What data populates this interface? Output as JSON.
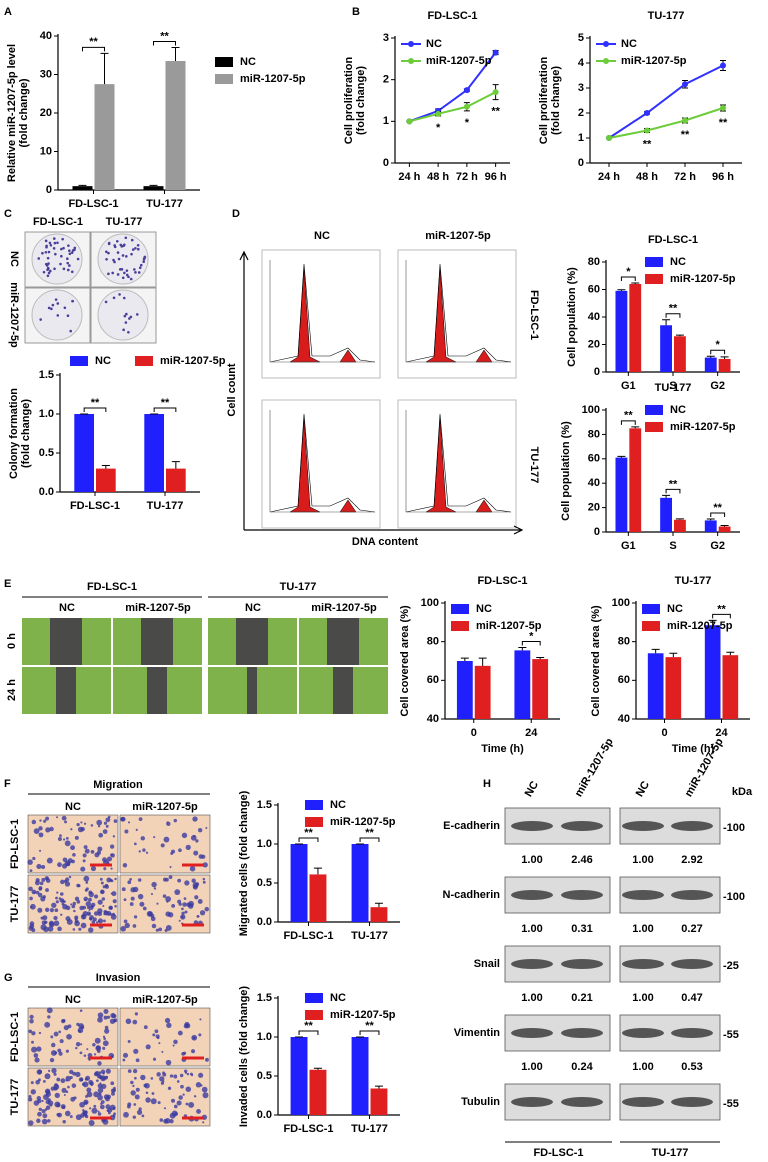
{
  "chart_data": [
    {
      "type": "bar",
      "categories": [
        "FD-LSC-1",
        "TU-177"
      ],
      "series": [
        {
          "name": "NC",
          "color": "#000000",
          "values": [
            1,
            1
          ],
          "errors": [
            0.2,
            0.2
          ]
        },
        {
          "name": "miR-1207-5p",
          "color": "#9a9a9a",
          "values": [
            27.5,
            33.5
          ],
          "errors": [
            8,
            3.5
          ]
        }
      ],
      "ylim": [
        0,
        40
      ],
      "yticks": [
        0,
        10,
        20,
        30,
        40
      ],
      "ylabel": [
        "Relative miR-1207-5p level",
        "(fold change)"
      ],
      "significance": [
        "**",
        "**"
      ],
      "legend": "outside right"
    },
    {
      "type": "line",
      "title": "FD-LSC-1",
      "categories": [
        "24 h",
        "48 h",
        "72 h",
        "96 h"
      ],
      "series": [
        {
          "name": "NC",
          "color": "#3030ff",
          "values": [
            1,
            1.25,
            1.75,
            2.65
          ],
          "errors": [
            0,
            0.05,
            0.03,
            0.05
          ]
        },
        {
          "name": "miR-1207-5p",
          "color": "#6ccc3a",
          "values": [
            1,
            1.18,
            1.35,
            1.7
          ],
          "errors": [
            0,
            0.05,
            0.1,
            0.18
          ]
        }
      ],
      "ylim": [
        0,
        3
      ],
      "yticks": [
        0,
        1,
        2,
        3
      ],
      "ylabel": [
        "Cell proliferation",
        "(fold change)"
      ],
      "significance": [
        null,
        "*",
        "*",
        "**"
      ],
      "legend": "upper left"
    },
    {
      "type": "line",
      "title": "TU-177",
      "categories": [
        "24 h",
        "48 h",
        "72 h",
        "96 h"
      ],
      "series": [
        {
          "name": "NC",
          "color": "#3030ff",
          "values": [
            1,
            2,
            3.15,
            3.9
          ],
          "errors": [
            0,
            0.05,
            0.15,
            0.2
          ]
        },
        {
          "name": "miR-1207-5p",
          "color": "#6ccc3a",
          "values": [
            1,
            1.3,
            1.7,
            2.2
          ],
          "errors": [
            0,
            0.08,
            0.1,
            0.12
          ]
        }
      ],
      "ylim": [
        0,
        5
      ],
      "yticks": [
        0,
        1,
        2,
        3,
        4,
        5
      ],
      "ylabel": [
        "Cell proliferation",
        "(fold change)"
      ],
      "significance": [
        null,
        "**",
        "**",
        "**"
      ],
      "legend": "upper left"
    },
    {
      "type": "bar",
      "categories": [
        "FD-LSC-1",
        "TU-177"
      ],
      "series": [
        {
          "name": "NC",
          "color": "#2020ff",
          "values": [
            1,
            1
          ],
          "errors": [
            0,
            0
          ]
        },
        {
          "name": "miR-1207-5p",
          "color": "#e02020",
          "values": [
            0.3,
            0.3
          ],
          "errors": [
            0.04,
            0.09
          ]
        }
      ],
      "ylim": [
        0,
        1.5
      ],
      "yticks": [
        {
          "value": 0,
          "label": "0.0"
        },
        {
          "value": 0.5,
          "label": "0.5"
        },
        {
          "value": 1,
          "label": "1.0"
        },
        {
          "value": 1.5,
          "label": "1.5"
        }
      ],
      "ylabel": [
        "Colony formation",
        "(fold change)"
      ],
      "significance": [
        "**",
        "**"
      ],
      "legend": "top"
    },
    {
      "type": "bar",
      "title": "FD-LSC-1",
      "categories": [
        "G1",
        "S",
        "G2"
      ],
      "series": [
        {
          "name": "NC",
          "color": "#2020ff",
          "values": [
            59,
            34,
            10.5
          ],
          "errors": [
            0.8,
            4,
            1
          ]
        },
        {
          "name": "miR-1207-5p",
          "color": "#e02020",
          "values": [
            64,
            26,
            9.5
          ],
          "errors": [
            0.7,
            0.8,
            1.5
          ]
        }
      ],
      "ylim": [
        0,
        80
      ],
      "yticks": [
        0,
        20,
        40,
        60,
        80
      ],
      "ylabel": [
        "Cell population (%)"
      ],
      "significance": [
        "*",
        "**",
        "*"
      ],
      "legend": "upper right"
    },
    {
      "type": "bar",
      "title": "TU-177",
      "categories": [
        "G1",
        "S",
        "G2"
      ],
      "series": [
        {
          "name": "NC",
          "color": "#2020ff",
          "values": [
            61,
            28,
            9.5
          ],
          "errors": [
            1,
            2,
            1.2
          ]
        },
        {
          "name": "miR-1207-5p",
          "color": "#e02020",
          "values": [
            85,
            10,
            4.5
          ],
          "errors": [
            1.2,
            0.8,
            0.8
          ]
        }
      ],
      "ylim": [
        0,
        100
      ],
      "yticks": [
        0,
        20,
        40,
        60,
        80,
        100
      ],
      "ylabel": [
        "Cell population (%)"
      ],
      "significance": [
        "**",
        "**",
        "**"
      ],
      "legend": "upper right"
    },
    {
      "type": "bar",
      "title": "FD-LSC-1",
      "categories": [
        "0",
        "24"
      ],
      "series": [
        {
          "name": "NC",
          "color": "#2020ff",
          "values": [
            70,
            75.5
          ],
          "errors": [
            1.5,
            1.5
          ]
        },
        {
          "name": "miR-1207-5p",
          "color": "#e02020",
          "values": [
            67.5,
            71
          ],
          "errors": [
            4,
            0.8
          ]
        }
      ],
      "ylim": [
        40,
        100
      ],
      "yticks": [
        40,
        60,
        80,
        100
      ],
      "ylabel": [
        "Cell covered area (%)"
      ],
      "xlabel": "Time (h)",
      "significance": [
        null,
        "*"
      ],
      "legend": "upper left"
    },
    {
      "type": "bar",
      "title": "TU-177",
      "categories": [
        "0",
        "24"
      ],
      "series": [
        {
          "name": "NC",
          "color": "#2020ff",
          "values": [
            74,
            88.5
          ],
          "errors": [
            2,
            2.5
          ]
        },
        {
          "name": "miR-1207-5p",
          "color": "#e02020",
          "values": [
            72,
            73
          ],
          "errors": [
            2,
            1.5
          ]
        }
      ],
      "ylim": [
        40,
        100
      ],
      "yticks": [
        40,
        60,
        80,
        100
      ],
      "ylabel": [
        "Cell covered area (%)"
      ],
      "xlabel": "Time (h)",
      "significance": [
        null,
        "**"
      ],
      "legend": "upper left"
    },
    {
      "type": "bar",
      "categories": [
        "FD-LSC-1",
        "TU-177"
      ],
      "series": [
        {
          "name": "NC",
          "color": "#2020ff",
          "values": [
            1,
            1
          ],
          "errors": [
            0,
            0
          ]
        },
        {
          "name": "miR-1207-5p",
          "color": "#e02020",
          "values": [
            0.61,
            0.19
          ],
          "errors": [
            0.08,
            0.05
          ]
        }
      ],
      "ylim": [
        0,
        1.5
      ],
      "yticks": [
        {
          "value": 0,
          "label": "0.0"
        },
        {
          "value": 0.5,
          "label": "0.5"
        },
        {
          "value": 1,
          "label": "1.0"
        },
        {
          "value": 1.5,
          "label": "1.5"
        }
      ],
      "ylabel": [
        "Migrated cells (fold change)"
      ],
      "significance": [
        "**",
        "**"
      ],
      "legend": "upper right"
    },
    {
      "type": "bar",
      "categories": [
        "FD-LSC-1",
        "TU-177"
      ],
      "series": [
        {
          "name": "NC",
          "color": "#2020ff",
          "values": [
            1,
            1
          ],
          "errors": [
            0,
            0
          ]
        },
        {
          "name": "miR-1207-5p",
          "color": "#e02020",
          "values": [
            0.58,
            0.34
          ],
          "errors": [
            0.02,
            0.03
          ]
        }
      ],
      "ylim": [
        0,
        1.5
      ],
      "yticks": [
        {
          "value": 0,
          "label": "0.0"
        },
        {
          "value": 0.5,
          "label": "0.5"
        },
        {
          "value": 1,
          "label": "1.0"
        },
        {
          "value": 1.5,
          "label": "1.5"
        }
      ],
      "ylabel": [
        "Invaded cells (fold change)"
      ],
      "significance": [
        "**",
        "**"
      ],
      "legend": "upper right"
    }
  ],
  "panels": {
    "letters": [
      "A",
      "B",
      "C",
      "D",
      "E",
      "F",
      "G",
      "H"
    ],
    "c_images": {
      "columns": [
        "FD-LSC-1",
        "TU-177"
      ],
      "rows": [
        "NC",
        "miR-1207-5p"
      ]
    },
    "d_flow": {
      "columns": [
        "NC",
        "miR-1207-5p"
      ],
      "rows": [
        "FD-LSC-1",
        "TU-177"
      ],
      "ylabel": "Cell count",
      "xlabel": "DNA content"
    },
    "e_images": {
      "groups": [
        {
          "title": "FD-LSC-1",
          "columns": [
            "NC",
            "miR-1207-5p"
          ]
        },
        {
          "title": "TU-177",
          "columns": [
            "NC",
            "miR-1207-5p"
          ]
        }
      ],
      "rows": [
        "0 h",
        "24 h"
      ]
    },
    "f_images": {
      "title": "Migration",
      "columns": [
        "NC",
        "miR-1207-5p"
      ],
      "rows": [
        "FD-LSC-1",
        "TU-177"
      ]
    },
    "g_images": {
      "title": "Invasion",
      "columns": [
        "NC",
        "miR-1207-5p"
      ],
      "rows": [
        "FD-LSC-1",
        "TU-177"
      ]
    },
    "h_blot": {
      "columns": [
        "NC",
        "miR-1207-5p",
        "NC",
        "miR-1207-5p"
      ],
      "unit": "kDa",
      "rows": [
        {
          "name": "E-cadherin",
          "marker": "-100",
          "quant": [
            "1.00",
            "2.46",
            "1.00",
            "2.92"
          ]
        },
        {
          "name": "N-cadherin",
          "marker": "-100",
          "quant": [
            "1.00",
            "0.31",
            "1.00",
            "0.27"
          ]
        },
        {
          "name": "Snail",
          "marker": "-25",
          "quant": [
            "1.00",
            "0.21",
            "1.00",
            "0.47"
          ]
        },
        {
          "name": "Vimentin",
          "marker": "-55",
          "quant": [
            "1.00",
            "0.24",
            "1.00",
            "0.53"
          ]
        },
        {
          "name": "Tubulin",
          "marker": "-55"
        }
      ],
      "groups": [
        "FD-LSC-1",
        "TU-177"
      ]
    }
  }
}
